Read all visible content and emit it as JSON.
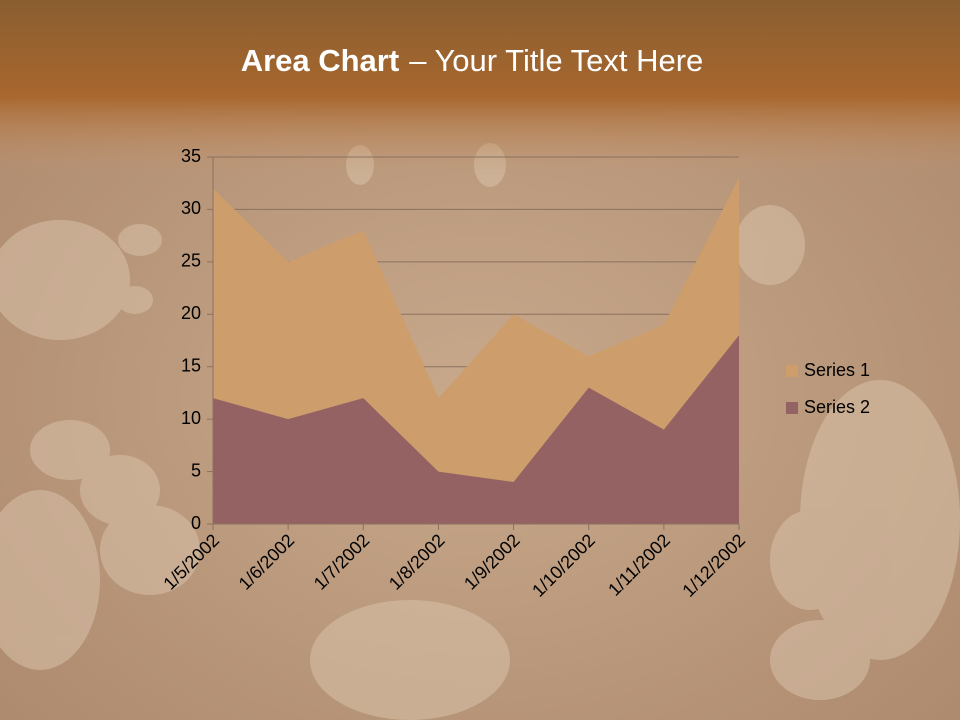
{
  "chart_data": {
    "type": "area",
    "title": [
      "Area Chart",
      "– Your Title Text Here"
    ],
    "categories": [
      "1/5/2002",
      "1/6/2002",
      "1/7/2002",
      "1/8/2002",
      "1/9/2002",
      "1/10/2002",
      "1/11/2002",
      "1/12/2002"
    ],
    "series": [
      {
        "name": "Series 1",
        "color": "#cd9d6c",
        "values": [
          32,
          25,
          28,
          12,
          20,
          16,
          19,
          33
        ]
      },
      {
        "name": "Series 2",
        "color": "#956264",
        "values": [
          12,
          10,
          12,
          5,
          4,
          13,
          9,
          18
        ]
      }
    ],
    "ylim": [
      0,
      35
    ],
    "yticks": [
      0,
      5,
      10,
      15,
      20,
      25,
      30,
      35
    ],
    "grid": true,
    "legend": "right"
  }
}
